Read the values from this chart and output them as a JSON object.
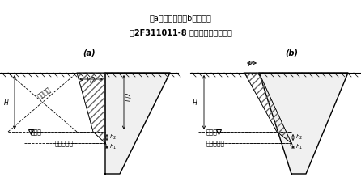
{
  "title": "图2F311011-8 重力坝浪压力分布图",
  "subtitle": "（a）深水波；（b）浅水波",
  "label_a": "(a)",
  "label_b": "(b)",
  "bg_color": "#ffffff",
  "line_color": "#000000",
  "text_color": "#000000",
  "font_size_label": 7,
  "font_size_title": 7,
  "font_size_annot": 5.5,
  "font_size_cn": 5.5
}
